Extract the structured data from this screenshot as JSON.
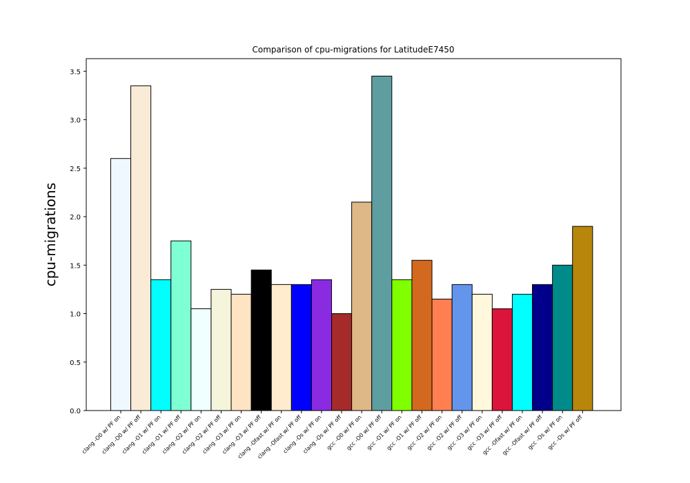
{
  "chart_data": {
    "type": "bar",
    "title": "Comparison of cpu-migrations for LatitudeE7450",
    "xlabel": "",
    "ylabel": "cpu-migrations",
    "ylim": [
      0,
      3.63
    ],
    "yticks": [
      "0.0",
      "0.5",
      "1.0",
      "1.5",
      "2.0",
      "2.5",
      "3.0",
      "3.5"
    ],
    "grid": false,
    "categories": [
      "clang -O0 w/ PF on",
      "clang -O0 w/ PF off",
      "clang -O1 w/ PF on",
      "clang -O1 w/ PF off",
      "clang -O2 w/ PF on",
      "clang -O2 w/ PF off",
      "clang -O3 w/ PF on",
      "clang -O3 w/ PF off",
      "clang -Ofast w/ PF on",
      "clang -Ofast w/ PF off",
      "clang -Os w/ PF on",
      "clang -Os w/ PF off",
      "gcc -O0 w/ PF on",
      "gcc -O0 w/ PF off",
      "gcc -O1 w/ PF on",
      "gcc -O1 w/ PF off",
      "gcc -O2 w/ PF on",
      "gcc -O2 w/ PF off",
      "gcc -O3 w/ PF on",
      "gcc -O3 w/ PF off",
      "gcc -Ofast w/ PF on",
      "gcc -Ofast w/ PF off",
      "gcc -Os w/ PF on",
      "gcc -Os w/ PF off"
    ],
    "values": [
      2.6,
      3.35,
      1.35,
      1.75,
      1.05,
      1.25,
      1.2,
      1.45,
      1.3,
      1.3,
      1.35,
      1.0,
      2.15,
      3.45,
      1.35,
      1.55,
      1.15,
      1.3,
      1.2,
      1.05,
      1.2,
      1.3,
      1.5,
      1.9
    ],
    "colors": [
      "#f0f8ff",
      "#faebd7",
      "#00ffff",
      "#7fffd4",
      "#f0ffff",
      "#f5f5dc",
      "#ffe4c4",
      "#000000",
      "#ffebcd",
      "#0000ff",
      "#8a2be2",
      "#a52a2a",
      "#deb887",
      "#5f9ea0",
      "#7fff00",
      "#d2691e",
      "#ff7f50",
      "#6495ed",
      "#fff8dc",
      "#dc143c",
      "#00ffff",
      "#00008b",
      "#008b8b",
      "#b8860b"
    ]
  }
}
